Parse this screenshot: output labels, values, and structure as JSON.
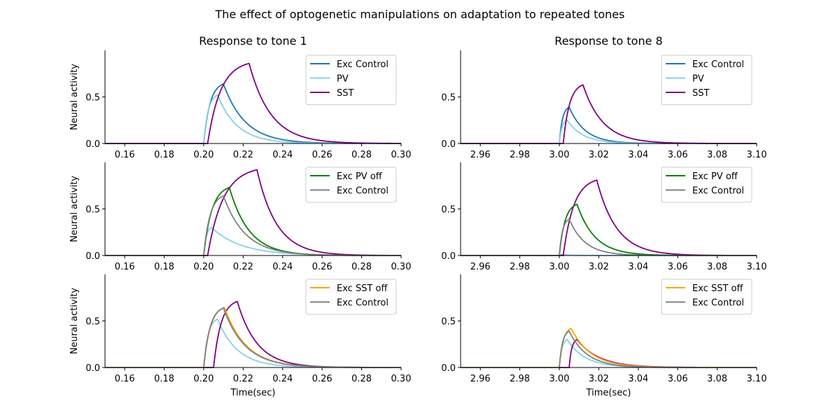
{
  "figure_title": "The effect of optogenetic manipulations on adaptation to repeated tones",
  "chart_data": [
    {
      "type": "line",
      "row": 0,
      "col": 0,
      "title": "Response to tone 1",
      "xlabel": "",
      "ylabel": "Neural activity",
      "xlim": [
        0.15,
        0.3
      ],
      "ylim": [
        0,
        1.0
      ],
      "xticks": [
        0.16,
        0.18,
        0.2,
        0.22,
        0.24,
        0.26,
        0.28,
        0.3
      ],
      "xtick_labels": [
        "0.16",
        "0.18",
        "0.20",
        "0.22",
        "0.24",
        "0.26",
        "0.28",
        "0.30"
      ],
      "yticks": [
        0.0,
        0.5
      ],
      "ytick_labels": [
        "0.0",
        "0.5"
      ],
      "series": [
        {
          "name": "Exc Control",
          "color": "#1f77b4",
          "legend": true,
          "onset": 0.2,
          "peak_x": 0.21,
          "peak_y": 0.64,
          "tau": 0.011
        },
        {
          "name": "PV",
          "color": "#87ceeb",
          "legend": true,
          "onset": 0.2,
          "peak_x": 0.207,
          "peak_y": 0.52,
          "tau": 0.01
        },
        {
          "name": "SST",
          "color": "#800080",
          "legend": true,
          "onset": 0.202,
          "peak_x": 0.223,
          "peak_y": 0.86,
          "tau": 0.011
        }
      ]
    },
    {
      "type": "line",
      "row": 0,
      "col": 1,
      "title": "Response to tone 8",
      "xlabel": "",
      "ylabel": "",
      "xlim": [
        2.95,
        3.1
      ],
      "ylim": [
        0,
        1.0
      ],
      "xticks": [
        2.96,
        2.98,
        3.0,
        3.02,
        3.04,
        3.06,
        3.08,
        3.1
      ],
      "xtick_labels": [
        "2.96",
        "2.98",
        "3.00",
        "3.02",
        "3.04",
        "3.06",
        "3.08",
        "3.10"
      ],
      "yticks": [
        0.0,
        0.5
      ],
      "ytick_labels": [
        "0.0",
        "0.5"
      ],
      "series": [
        {
          "name": "Exc Control",
          "color": "#1f77b4",
          "legend": true,
          "onset": 3.0,
          "peak_x": 3.005,
          "peak_y": 0.39,
          "tau": 0.008
        },
        {
          "name": "PV",
          "color": "#87ceeb",
          "legend": true,
          "onset": 3.0,
          "peak_x": 3.004,
          "peak_y": 0.25,
          "tau": 0.008
        },
        {
          "name": "SST",
          "color": "#800080",
          "legend": true,
          "onset": 3.002,
          "peak_x": 3.012,
          "peak_y": 0.63,
          "tau": 0.01
        }
      ]
    },
    {
      "type": "line",
      "row": 1,
      "col": 0,
      "title": "",
      "xlabel": "",
      "ylabel": "Neural activity",
      "xlim": [
        0.15,
        0.3
      ],
      "ylim": [
        0,
        1.0
      ],
      "xticks": [
        0.16,
        0.18,
        0.2,
        0.22,
        0.24,
        0.26,
        0.28,
        0.3
      ],
      "xtick_labels": [
        "0.16",
        "0.18",
        "0.20",
        "0.22",
        "0.24",
        "0.26",
        "0.28",
        "0.30"
      ],
      "yticks": [
        0.0,
        0.5
      ],
      "ytick_labels": [
        "0.0",
        "0.5"
      ],
      "series": [
        {
          "name": "PV",
          "color": "#87ceeb",
          "legend": false,
          "onset": 0.2,
          "peak_x": 0.204,
          "peak_y": 0.3,
          "tau": 0.015
        },
        {
          "name": "SST",
          "color": "#800080",
          "legend": false,
          "onset": 0.202,
          "peak_x": 0.227,
          "peak_y": 0.92,
          "tau": 0.01
        },
        {
          "name": "Exc PV off",
          "color": "#008000",
          "legend": true,
          "onset": 0.2,
          "peak_x": 0.213,
          "peak_y": 0.73,
          "tau": 0.01
        },
        {
          "name": "Exc Control",
          "color": "#808080",
          "legend": true,
          "onset": 0.2,
          "peak_x": 0.21,
          "peak_y": 0.64,
          "tau": 0.011
        }
      ]
    },
    {
      "type": "line",
      "row": 1,
      "col": 1,
      "title": "",
      "xlabel": "",
      "ylabel": "",
      "xlim": [
        2.95,
        3.1
      ],
      "ylim": [
        0,
        1.0
      ],
      "xticks": [
        2.96,
        2.98,
        3.0,
        3.02,
        3.04,
        3.06,
        3.08,
        3.1
      ],
      "xtick_labels": [
        "2.96",
        "2.98",
        "3.00",
        "3.02",
        "3.04",
        "3.06",
        "3.08",
        "3.10"
      ],
      "yticks": [
        0.0,
        0.5
      ],
      "ytick_labels": [
        "0.0",
        "0.5"
      ],
      "series": [
        {
          "name": "PV",
          "color": "#87ceeb",
          "legend": false,
          "onset": 3.0,
          "peak_x": 3.001,
          "peak_y": 0.01,
          "tau": 0.005
        },
        {
          "name": "SST",
          "color": "#800080",
          "legend": false,
          "onset": 3.002,
          "peak_x": 3.019,
          "peak_y": 0.81,
          "tau": 0.01
        },
        {
          "name": "Exc PV off",
          "color": "#008000",
          "legend": true,
          "onset": 3.0,
          "peak_x": 3.009,
          "peak_y": 0.55,
          "tau": 0.009
        },
        {
          "name": "Exc Control",
          "color": "#808080",
          "legend": true,
          "onset": 3.0,
          "peak_x": 3.005,
          "peak_y": 0.39,
          "tau": 0.008
        }
      ]
    },
    {
      "type": "line",
      "row": 2,
      "col": 0,
      "title": "",
      "xlabel": "Time(sec)",
      "ylabel": "Neural activity",
      "xlim": [
        0.15,
        0.3
      ],
      "ylim": [
        0,
        1.0
      ],
      "xticks": [
        0.16,
        0.18,
        0.2,
        0.22,
        0.24,
        0.26,
        0.28,
        0.3
      ],
      "xtick_labels": [
        "0.16",
        "0.18",
        "0.20",
        "0.22",
        "0.24",
        "0.26",
        "0.28",
        "0.30"
      ],
      "yticks": [
        0.0,
        0.5
      ],
      "ytick_labels": [
        "0.0",
        "0.5"
      ],
      "series": [
        {
          "name": "PV",
          "color": "#87ceeb",
          "legend": false,
          "onset": 0.2,
          "peak_x": 0.207,
          "peak_y": 0.52,
          "tau": 0.01
        },
        {
          "name": "SST",
          "color": "#800080",
          "legend": false,
          "onset": 0.205,
          "peak_x": 0.217,
          "peak_y": 0.71,
          "tau": 0.01
        },
        {
          "name": "Exc SST off",
          "color": "#ffa500",
          "legend": true,
          "onset": 0.2,
          "peak_x": 0.2105,
          "peak_y": 0.645,
          "tau": 0.011
        },
        {
          "name": "Exc Control",
          "color": "#808080",
          "legend": true,
          "onset": 0.2,
          "peak_x": 0.21,
          "peak_y": 0.64,
          "tau": 0.011
        }
      ]
    },
    {
      "type": "line",
      "row": 2,
      "col": 1,
      "title": "",
      "xlabel": "Time(sec)",
      "ylabel": "",
      "xlim": [
        2.95,
        3.1
      ],
      "ylim": [
        0,
        1.0
      ],
      "xticks": [
        2.96,
        2.98,
        3.0,
        3.02,
        3.04,
        3.06,
        3.08,
        3.1
      ],
      "xtick_labels": [
        "2.96",
        "2.98",
        "3.00",
        "3.02",
        "3.04",
        "3.06",
        "3.08",
        "3.10"
      ],
      "yticks": [
        0.0,
        0.5
      ],
      "ytick_labels": [
        "0.0",
        "0.5"
      ],
      "series": [
        {
          "name": "PV",
          "color": "#87ceeb",
          "legend": false,
          "onset": 3.0,
          "peak_x": 3.004,
          "peak_y": 0.3,
          "tau": 0.009
        },
        {
          "name": "SST",
          "color": "#800080",
          "legend": false,
          "onset": 3.005,
          "peak_x": 3.009,
          "peak_y": 0.3,
          "tau": 0.011
        },
        {
          "name": "Exc SST off",
          "color": "#ffa500",
          "legend": true,
          "onset": 3.0,
          "peak_x": 3.006,
          "peak_y": 0.42,
          "tau": 0.01
        },
        {
          "name": "Exc Control",
          "color": "#808080",
          "legend": true,
          "onset": 3.0,
          "peak_x": 3.005,
          "peak_y": 0.39,
          "tau": 0.009
        }
      ]
    }
  ]
}
